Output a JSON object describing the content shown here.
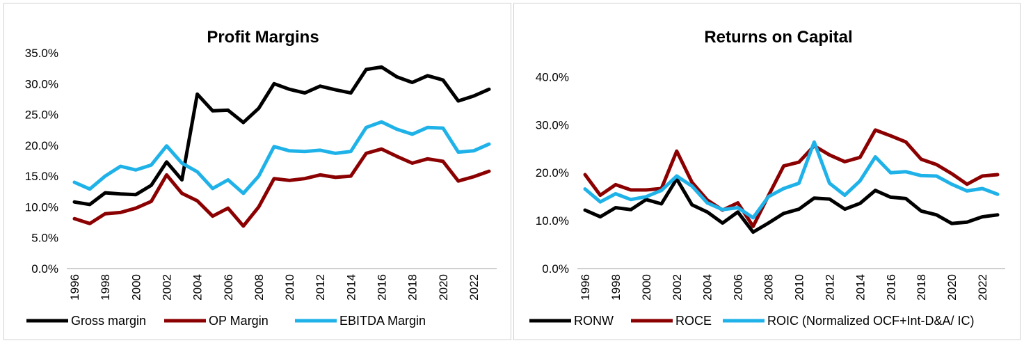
{
  "chart_data": [
    {
      "type": "line",
      "title": "Profit Margins",
      "xlabel": "",
      "ylabel": "",
      "x": [
        1996,
        1997,
        1998,
        1999,
        2000,
        2001,
        2002,
        2003,
        2004,
        2005,
        2006,
        2007,
        2008,
        2009,
        2010,
        2011,
        2012,
        2013,
        2014,
        2015,
        2016,
        2017,
        2018,
        2019,
        2020,
        2021,
        2022,
        2023
      ],
      "x_tick_labels": [
        "1996",
        "1998",
        "2000",
        "2002",
        "2004",
        "2006",
        "2008",
        "2010",
        "2012",
        "2014",
        "2016",
        "2018",
        "2020",
        "2022"
      ],
      "ylim": [
        0,
        0.35
      ],
      "y_ticks": [
        0,
        0.05,
        0.1,
        0.15,
        0.2,
        0.25,
        0.3,
        0.35
      ],
      "y_tick_labels": [
        "0.0%",
        "5.0%",
        "10.0%",
        "15.0%",
        "20.0%",
        "25.0%",
        "30.0%",
        "35.0%"
      ],
      "grid": false,
      "legend_position": "bottom",
      "series": [
        {
          "name": "Gross margin",
          "color": "#000000",
          "values": [
            0.108,
            0.104,
            0.123,
            0.121,
            0.12,
            0.135,
            0.173,
            0.144,
            0.283,
            0.256,
            0.257,
            0.237,
            0.26,
            0.3,
            0.291,
            0.285,
            0.296,
            0.29,
            0.285,
            0.323,
            0.327,
            0.311,
            0.302,
            0.313,
            0.306,
            0.272,
            0.28,
            0.291
          ]
        },
        {
          "name": "OP Margin",
          "color": "#8B0000",
          "values": [
            0.081,
            0.073,
            0.089,
            0.091,
            0.098,
            0.109,
            0.152,
            0.122,
            0.11,
            0.085,
            0.098,
            0.069,
            0.1,
            0.146,
            0.143,
            0.146,
            0.152,
            0.148,
            0.15,
            0.187,
            0.194,
            0.182,
            0.171,
            0.178,
            0.174,
            0.142,
            0.149,
            0.158
          ]
        },
        {
          "name": "EBITDA Margin",
          "color": "#1FB2E8",
          "values": [
            0.14,
            0.129,
            0.15,
            0.166,
            0.16,
            0.168,
            0.199,
            0.171,
            0.157,
            0.13,
            0.144,
            0.122,
            0.15,
            0.198,
            0.191,
            0.19,
            0.192,
            0.187,
            0.19,
            0.229,
            0.238,
            0.226,
            0.218,
            0.229,
            0.228,
            0.189,
            0.191,
            0.202
          ]
        }
      ]
    },
    {
      "type": "line",
      "title": "Returns on Capital",
      "xlabel": "",
      "ylabel": "",
      "x": [
        1996,
        1997,
        1998,
        1999,
        2000,
        2001,
        2002,
        2003,
        2004,
        2005,
        2006,
        2007,
        2008,
        2009,
        2010,
        2011,
        2012,
        2013,
        2014,
        2015,
        2016,
        2017,
        2018,
        2019,
        2020,
        2021,
        2022,
        2023
      ],
      "x_tick_labels": [
        "1996",
        "1998",
        "2000",
        "2002",
        "2004",
        "2006",
        "2008",
        "2010",
        "2012",
        "2014",
        "2016",
        "2018",
        "2020",
        "2022"
      ],
      "ylim": [
        0,
        0.45
      ],
      "y_ticks": [
        0,
        0.1,
        0.2,
        0.3,
        0.4
      ],
      "y_tick_labels": [
        "0.0%",
        "10.0%",
        "20.0%",
        "30.0%",
        "40.0%"
      ],
      "grid": false,
      "legend_position": "bottom",
      "series": [
        {
          "name": "RONW",
          "color": "#000000",
          "values": [
            0.122,
            0.108,
            0.127,
            0.123,
            0.144,
            0.135,
            0.187,
            0.133,
            0.118,
            0.095,
            0.118,
            0.076,
            0.095,
            0.115,
            0.124,
            0.147,
            0.145,
            0.124,
            0.136,
            0.163,
            0.149,
            0.146,
            0.12,
            0.112,
            0.094,
            0.097,
            0.108,
            0.112
          ]
        },
        {
          "name": "ROCE",
          "color": "#8B0000",
          "values": [
            0.196,
            0.153,
            0.175,
            0.164,
            0.164,
            0.167,
            0.245,
            0.18,
            0.143,
            0.122,
            0.137,
            0.088,
            0.152,
            0.214,
            0.222,
            0.256,
            0.237,
            0.223,
            0.232,
            0.289,
            0.277,
            0.264,
            0.228,
            0.217,
            0.198,
            0.176,
            0.193,
            0.196
          ]
        },
        {
          "name": "ROIC (Normalized OCF+Int-D&A/ IC)",
          "color": "#1FB2E8",
          "values": [
            0.166,
            0.139,
            0.156,
            0.144,
            0.15,
            0.163,
            0.193,
            0.172,
            0.137,
            0.123,
            0.127,
            0.106,
            0.15,
            0.167,
            0.178,
            0.264,
            0.178,
            0.153,
            0.183,
            0.233,
            0.2,
            0.202,
            0.194,
            0.193,
            0.176,
            0.162,
            0.167,
            0.155
          ]
        }
      ]
    }
  ]
}
